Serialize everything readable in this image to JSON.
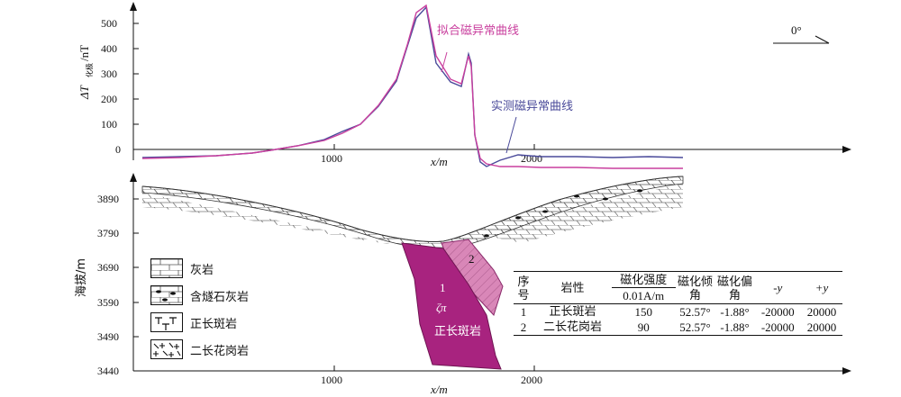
{
  "upper_panel": {
    "y_axis_label_main": "ΔT",
    "y_axis_label_sub": "化极",
    "y_axis_label_unit": "/nT",
    "y_ticks": [
      "500",
      "400",
      "300",
      "200",
      "100",
      "0"
    ],
    "x_ticks": [
      "1000",
      "2000"
    ],
    "x_axis_label": "x/m",
    "curve_fit_label": "拟合磁异常曲线",
    "curve_measured_label": "实测磁异常曲线",
    "angle_label": "0°",
    "colors": {
      "fit": "#c93f9e",
      "measured": "#4a4a9a"
    }
  },
  "lower_panel": {
    "y_axis_label": "海拔/m",
    "y_ticks": [
      "3890",
      "3790",
      "3690",
      "3590",
      "3490",
      "3440"
    ],
    "x_ticks": [
      "1000",
      "2000"
    ],
    "x_axis_label": "x/m",
    "body1_label_num": "1",
    "body1_label_sym": "ζπ",
    "body1_label_name": "正长斑岩",
    "body2_label_num": "2",
    "colors": {
      "body1": "#a8237f",
      "body2": "#d987b8"
    }
  },
  "legend": [
    {
      "icon": "limestone-pattern",
      "label": "灰岩"
    },
    {
      "icon": "chert-limestone-pattern",
      "label": "含燧石灰岩"
    },
    {
      "icon": "syenite-porphyry-pattern",
      "label": "正长斑岩"
    },
    {
      "icon": "two-mica-granite-pattern",
      "label": "二长花岗岩"
    }
  ],
  "table": {
    "header": {
      "col1": "序号",
      "col2": "岩性",
      "col3a": "磁化强度",
      "col3b": "0.01A/m",
      "col4": "磁化倾角",
      "col5": "磁化偏角",
      "col6": "-y",
      "col7": "+y"
    },
    "rows": [
      {
        "no": "1",
        "rock": "正长斑岩",
        "intensity": "150",
        "incl": "52.57°",
        "decl": "-1.88°",
        "ny": "-20000",
        "py": "20000"
      },
      {
        "no": "2",
        "rock": "二长花岗岩",
        "intensity": "90",
        "incl": "52.57°",
        "decl": "-1.88°",
        "ny": "-20000",
        "py": "20000"
      }
    ]
  }
}
